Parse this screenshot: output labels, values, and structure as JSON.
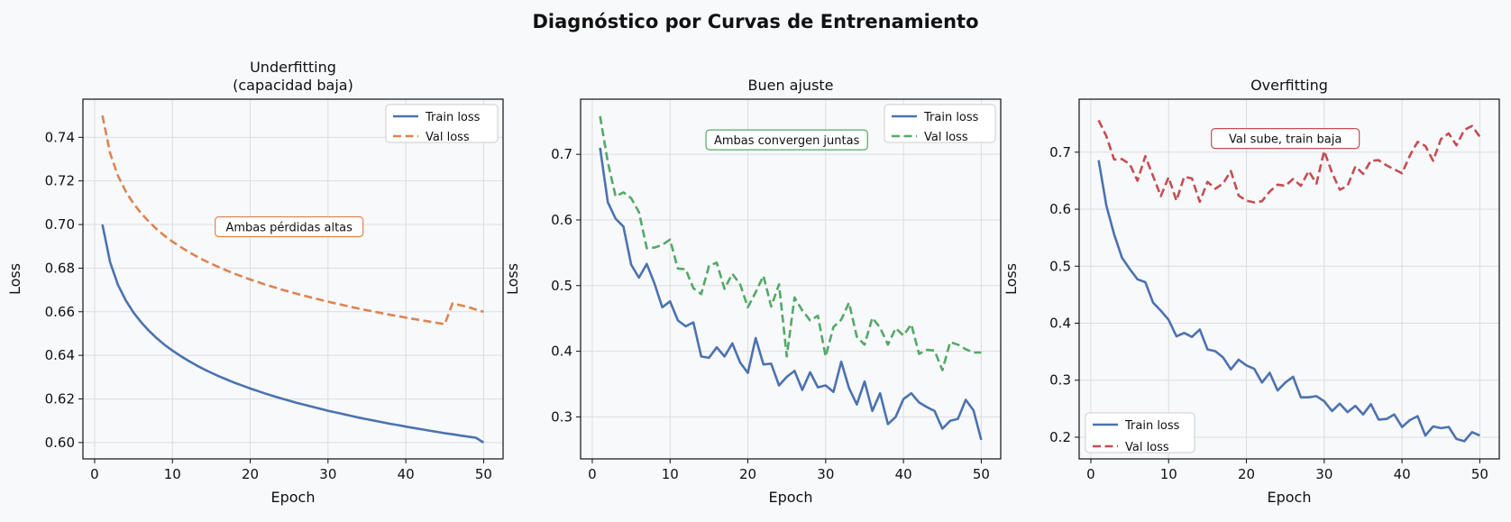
{
  "figure": {
    "title": "Diagnóstico por Curvas de Entrenamiento"
  },
  "chart_data": [
    {
      "type": "line",
      "title": "Underfitting\n(capacidad baja)",
      "xlabel": "Epoch",
      "ylabel": "Loss",
      "xlim": [
        -1.5,
        52.5
      ],
      "ylim": [
        0.5925,
        0.7575
      ],
      "xticks": [
        0,
        10,
        20,
        30,
        40,
        50
      ],
      "yticks": [
        0.6,
        0.62,
        0.64,
        0.66,
        0.68,
        0.7,
        0.72,
        0.74
      ],
      "ytick_labels": [
        "0.60",
        "0.62",
        "0.64",
        "0.66",
        "0.68",
        "0.70",
        "0.72",
        "0.74"
      ],
      "grid": true,
      "legend_position": "top-right",
      "x": [
        1,
        2,
        3,
        4,
        5,
        6,
        7,
        8,
        9,
        10,
        11,
        12,
        13,
        14,
        15,
        16,
        17,
        18,
        19,
        20,
        21,
        22,
        23,
        24,
        25,
        26,
        27,
        28,
        29,
        30,
        31,
        32,
        33,
        34,
        35,
        36,
        37,
        38,
        39,
        40,
        41,
        42,
        43,
        44,
        45,
        46,
        47,
        48,
        49,
        50
      ],
      "series": [
        {
          "name": "Train loss",
          "color": "#4c72b0",
          "dash": "solid",
          "values": [
            0.7,
            0.6826,
            0.6724,
            0.6652,
            0.6596,
            0.6551,
            0.6512,
            0.6478,
            0.6448,
            0.6422,
            0.6398,
            0.6376,
            0.6356,
            0.6337,
            0.632,
            0.6304,
            0.6289,
            0.6274,
            0.6261,
            0.6248,
            0.6236,
            0.6224,
            0.6213,
            0.6202,
            0.6192,
            0.6182,
            0.6173,
            0.6164,
            0.6155,
            0.6146,
            0.6138,
            0.613,
            0.6122,
            0.6114,
            0.6107,
            0.61,
            0.6093,
            0.6086,
            0.608,
            0.6073,
            0.6067,
            0.6061,
            0.6055,
            0.6049,
            0.6043,
            0.6038,
            0.6032,
            0.6027,
            0.6022,
            0.6
          ]
        },
        {
          "name": "Val loss",
          "color": "#dd8452",
          "dash": "dashed",
          "values": [
            0.75,
            0.7326,
            0.7224,
            0.7152,
            0.7096,
            0.7051,
            0.7012,
            0.6978,
            0.6948,
            0.6922,
            0.6898,
            0.6876,
            0.6856,
            0.6837,
            0.682,
            0.6804,
            0.6789,
            0.6774,
            0.6761,
            0.6748,
            0.6736,
            0.6724,
            0.6713,
            0.6702,
            0.6692,
            0.6682,
            0.6673,
            0.6664,
            0.6655,
            0.6646,
            0.6638,
            0.663,
            0.6622,
            0.6614,
            0.6607,
            0.66,
            0.6593,
            0.6586,
            0.658,
            0.6573,
            0.6567,
            0.6561,
            0.6555,
            0.6549,
            0.6543,
            0.6638,
            0.663,
            0.6622,
            0.661,
            0.66
          ]
        }
      ],
      "annotation": {
        "text": "Ambas pérdidas altas",
        "x": 25,
        "y": 0.699,
        "border_color": "#dd8452"
      }
    },
    {
      "type": "line",
      "title": "Buen ajuste",
      "xlabel": "Epoch",
      "ylabel": "Loss",
      "xlim": [
        -1.5,
        52.5
      ],
      "ylim": [
        0.236,
        0.784
      ],
      "xticks": [
        0,
        10,
        20,
        30,
        40,
        50
      ],
      "yticks": [
        0.3,
        0.4,
        0.5,
        0.6,
        0.7
      ],
      "ytick_labels": [
        "0.3",
        "0.4",
        "0.5",
        "0.6",
        "0.7"
      ],
      "grid": true,
      "legend_position": "top-right",
      "x": [
        1,
        2,
        3,
        4,
        5,
        6,
        7,
        8,
        9,
        10,
        11,
        12,
        13,
        14,
        15,
        16,
        17,
        18,
        19,
        20,
        21,
        22,
        23,
        24,
        25,
        26,
        27,
        28,
        29,
        30,
        31,
        32,
        33,
        34,
        35,
        36,
        37,
        38,
        39,
        40,
        41,
        42,
        43,
        44,
        45,
        46,
        47,
        48,
        49,
        50
      ],
      "series": [
        {
          "name": "Train loss",
          "color": "#4c72b0",
          "dash": "solid",
          "values": [
            0.71,
            0.627,
            0.602,
            0.59,
            0.532,
            0.512,
            0.533,
            0.503,
            0.467,
            0.476,
            0.447,
            0.438,
            0.444,
            0.392,
            0.39,
            0.406,
            0.392,
            0.412,
            0.383,
            0.367,
            0.42,
            0.38,
            0.381,
            0.348,
            0.361,
            0.37,
            0.341,
            0.368,
            0.345,
            0.348,
            0.338,
            0.384,
            0.344,
            0.319,
            0.354,
            0.309,
            0.336,
            0.289,
            0.3,
            0.327,
            0.336,
            0.322,
            0.315,
            0.309,
            0.282,
            0.294,
            0.297,
            0.326,
            0.31,
            0.265
          ]
        },
        {
          "name": "Val loss",
          "color": "#55a868",
          "dash": "dashed",
          "values": [
            0.758,
            0.688,
            0.636,
            0.642,
            0.633,
            0.612,
            0.557,
            0.558,
            0.562,
            0.57,
            0.526,
            0.525,
            0.496,
            0.487,
            0.53,
            0.535,
            0.495,
            0.518,
            0.502,
            0.467,
            0.49,
            0.515,
            0.468,
            0.502,
            0.392,
            0.482,
            0.462,
            0.447,
            0.454,
            0.392,
            0.437,
            0.448,
            0.474,
            0.422,
            0.41,
            0.451,
            0.436,
            0.41,
            0.435,
            0.424,
            0.441,
            0.396,
            0.402,
            0.401,
            0.371,
            0.414,
            0.41,
            0.403,
            0.398,
            0.398
          ]
        }
      ],
      "annotation": {
        "text": "Ambas convergen juntas",
        "x": 25,
        "y": 0.722,
        "border_color": "#55a868"
      }
    },
    {
      "type": "line",
      "title": "Overfitting",
      "xlabel": "Epoch",
      "ylabel": "Loss",
      "xlim": [
        -1.5,
        52.5
      ],
      "ylim": [
        0.162,
        0.793
      ],
      "xticks": [
        0,
        10,
        20,
        30,
        40,
        50
      ],
      "yticks": [
        0.2,
        0.3,
        0.4,
        0.5,
        0.6,
        0.7
      ],
      "ytick_labels": [
        "0.2",
        "0.3",
        "0.4",
        "0.5",
        "0.6",
        "0.7"
      ],
      "grid": true,
      "legend_position": "bottom-left",
      "x": [
        1,
        2,
        3,
        4,
        5,
        6,
        7,
        8,
        9,
        10,
        11,
        12,
        13,
        14,
        15,
        16,
        17,
        18,
        19,
        20,
        21,
        22,
        23,
        24,
        25,
        26,
        27,
        28,
        29,
        30,
        31,
        32,
        33,
        34,
        35,
        36,
        37,
        38,
        39,
        40,
        41,
        42,
        43,
        44,
        45,
        46,
        47,
        48,
        49,
        50
      ],
      "series": [
        {
          "name": "Train loss",
          "color": "#4c72b0",
          "dash": "solid",
          "values": [
            0.686,
            0.606,
            0.556,
            0.515,
            0.495,
            0.477,
            0.472,
            0.436,
            0.422,
            0.406,
            0.377,
            0.383,
            0.376,
            0.389,
            0.354,
            0.351,
            0.34,
            0.319,
            0.336,
            0.326,
            0.32,
            0.296,
            0.313,
            0.282,
            0.296,
            0.306,
            0.27,
            0.27,
            0.272,
            0.263,
            0.246,
            0.259,
            0.244,
            0.255,
            0.24,
            0.258,
            0.231,
            0.232,
            0.24,
            0.218,
            0.23,
            0.237,
            0.203,
            0.219,
            0.216,
            0.218,
            0.197,
            0.193,
            0.209,
            0.203
          ]
        },
        {
          "name": "Val loss",
          "color": "#c44e52",
          "dash": "dashed",
          "values": [
            0.756,
            0.728,
            0.687,
            0.688,
            0.679,
            0.65,
            0.693,
            0.658,
            0.623,
            0.656,
            0.615,
            0.657,
            0.654,
            0.613,
            0.648,
            0.636,
            0.645,
            0.667,
            0.624,
            0.615,
            0.612,
            0.614,
            0.631,
            0.643,
            0.641,
            0.653,
            0.641,
            0.667,
            0.645,
            0.702,
            0.664,
            0.634,
            0.641,
            0.675,
            0.662,
            0.685,
            0.686,
            0.677,
            0.67,
            0.663,
            0.694,
            0.718,
            0.711,
            0.685,
            0.723,
            0.733,
            0.712,
            0.739,
            0.746,
            0.727
          ]
        }
      ],
      "annotation": {
        "text": "Val sube, train baja",
        "x": 25,
        "y": 0.724,
        "border_color": "#c44e52"
      }
    }
  ]
}
